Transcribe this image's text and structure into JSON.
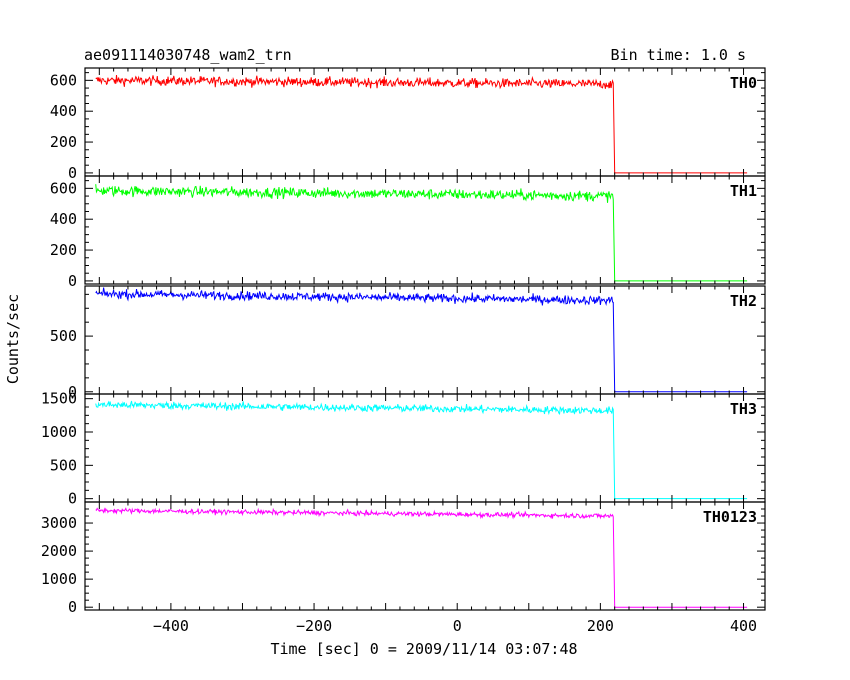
{
  "chart_data": {
    "type": "line",
    "title": "ae091114030748_wam2_trn",
    "subtitle": "Bin time: 1.0 s",
    "xlabel": "Time [sec] 0 = 2009/11/14 03:07:48",
    "ylabel": "Counts/sec",
    "xlim": [
      -520,
      430
    ],
    "x_ticks": [
      -400,
      -200,
      0,
      200,
      400
    ],
    "x_tick_labels": [
      "−400",
      "−200",
      "0",
      "200",
      "400"
    ],
    "drop_time": 218,
    "x_start": -505,
    "x_end": 405,
    "grid": false,
    "panels": [
      {
        "series_name": "TH0",
        "color": "#ff0000",
        "ylim": [
          -20,
          680
        ],
        "yticks": [
          0,
          200,
          400,
          600
        ],
        "ytick_labels": [
          "0",
          "200",
          "400",
          "600"
        ],
        "level_start": 600,
        "level_end": 575,
        "noise": 22,
        "after_level": 0
      },
      {
        "series_name": "TH1",
        "color": "#00ff00",
        "ylim": [
          -20,
          680
        ],
        "yticks": [
          0,
          200,
          400,
          600
        ],
        "ytick_labels": [
          "0",
          "200",
          "400",
          "600"
        ],
        "level_start": 585,
        "level_end": 550,
        "noise": 24,
        "after_level": 0
      },
      {
        "series_name": "TH2",
        "color": "#0000ff",
        "ylim": [
          -20,
          950
        ],
        "yticks": [
          0,
          500
        ],
        "ytick_labels": [
          "0",
          "500"
        ],
        "level_start": 880,
        "level_end": 820,
        "noise": 28,
        "after_level": 0
      },
      {
        "series_name": "TH3",
        "color": "#00ffff",
        "ylim": [
          -50,
          1570
        ],
        "yticks": [
          0,
          500,
          1000,
          1500
        ],
        "ytick_labels": [
          "0",
          "500",
          "1000",
          "1500"
        ],
        "level_start": 1410,
        "level_end": 1320,
        "noise": 40,
        "after_level": 0
      },
      {
        "series_name": "TH0123",
        "color": "#ff00ff",
        "ylim": [
          -100,
          3750
        ],
        "yticks": [
          0,
          1000,
          2000,
          3000
        ],
        "ytick_labels": [
          "0",
          "1000",
          "2000",
          "3000"
        ],
        "level_start": 3450,
        "level_end": 3250,
        "noise": 60,
        "after_level": 0
      }
    ]
  }
}
